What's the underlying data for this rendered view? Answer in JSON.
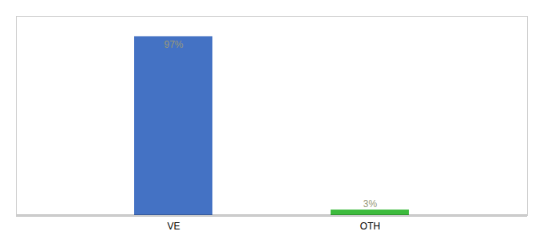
{
  "chart_data": {
    "type": "bar",
    "categories": [
      "VE",
      "OTH"
    ],
    "values": [
      97,
      3
    ],
    "colors": [
      "#4472c4",
      "#3dbb3d"
    ],
    "value_labels": [
      "97%",
      "3%"
    ],
    "data_labels": true,
    "ylim": [
      0,
      108
    ],
    "tick_labels": "x",
    "grid": false
  }
}
